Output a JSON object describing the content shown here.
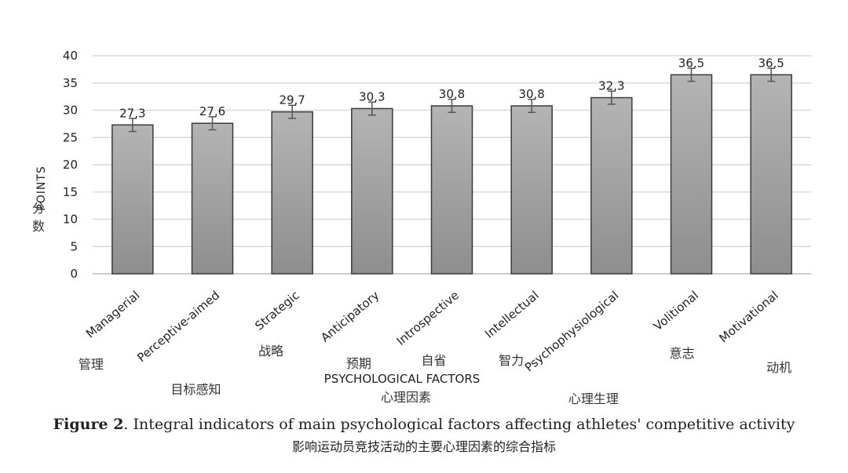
{
  "chart_data": {
    "type": "bar",
    "categories": [
      "Managerial",
      "Perceptive-aimed",
      "Strategic",
      "Anticipatory",
      "Introspective",
      "Intellectual",
      "Psychophysiological",
      "Volitional",
      "Motivational"
    ],
    "categories_cn": [
      "管理",
      "目标感知",
      "战略",
      "预期",
      "自省",
      "智力",
      "心理生理",
      "意志",
      "动机"
    ],
    "values": [
      27.3,
      27.6,
      29.7,
      30.3,
      30.8,
      30.8,
      32.3,
      36.5,
      36.5
    ],
    "value_labels": [
      "27,3",
      "27,6",
      "29,7",
      "30,3",
      "30,8",
      "30,8",
      "32,3",
      "36,5",
      "36,5"
    ],
    "error_bar": 1.2,
    "ylim": [
      0,
      40
    ],
    "yticks": [
      0,
      5,
      10,
      15,
      20,
      25,
      30,
      35,
      40
    ],
    "ylabel": "POINTS",
    "ylabel_cn": "分数",
    "xlabel": "PSYCHOLOGICAL FACTORS",
    "xlabel_cn": "心理因素",
    "grid": true,
    "bar_color": "#a3a3a3"
  },
  "caption": {
    "label": "Figure 2",
    "text": ". Integral indicators of main psychological factors affecting athletes' competitive activity",
    "cn": "影响运动员竞技活动的主要心理因素的综合指标"
  }
}
